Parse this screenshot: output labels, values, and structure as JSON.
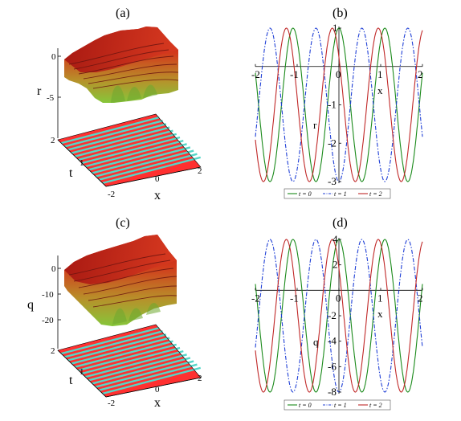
{
  "panels": [
    {
      "label": "(a)"
    },
    {
      "label": "(b)"
    },
    {
      "label": "(c)"
    },
    {
      "label": "(d)"
    }
  ],
  "colors": {
    "green": "#1a8a1a",
    "blue": "#1f3fd6",
    "red": "#c02828",
    "surface_top": "#c8281e",
    "surface_bottom": "#8cc43c",
    "stripe_red": "#ff3030",
    "stripe_cyan": "#54d6c8"
  },
  "chart_data": [
    {
      "type": "surface",
      "panel": "(a)",
      "zlabel": "r",
      "xlabel": "x",
      "ylabel": "t",
      "z_ticks": [
        "0",
        "-5"
      ],
      "x_ticks": [
        "0",
        "2"
      ],
      "t_ticks": [
        "2",
        "1",
        "-2"
      ]
    },
    {
      "type": "line",
      "panel": "(b)",
      "xlabel": "x",
      "ylabel": "r",
      "xlim": [
        -2,
        2
      ],
      "ylim": [
        -3,
        1
      ],
      "x_ticks": [
        "-2",
        "-1",
        "0",
        "1",
        "2"
      ],
      "y_ticks": [
        "1",
        "-1",
        "-2",
        "-3"
      ],
      "series": [
        {
          "name": "t = 0",
          "color": "#1a8a1a",
          "dash": "solid",
          "min": -3,
          "max": 1,
          "period": 1.1,
          "phase": 0.0
        },
        {
          "name": "t = 1",
          "color": "#1f3fd6",
          "dash": "dashdot",
          "min": -3,
          "max": 1,
          "period": 1.1,
          "phase": 0.55
        },
        {
          "name": "t = 2",
          "color": "#c02828",
          "dash": "solid",
          "min": -3,
          "max": 1,
          "period": 1.1,
          "phase": 0.0
        }
      ],
      "legend": "bottom"
    },
    {
      "type": "surface",
      "panel": "(c)",
      "zlabel": "q",
      "xlabel": "x",
      "ylabel": "t",
      "z_ticks": [
        "0",
        "-10",
        "-20"
      ],
      "x_ticks": [
        "0",
        "2"
      ],
      "t_ticks": [
        "2",
        "1",
        "-2"
      ]
    },
    {
      "type": "line",
      "panel": "(d)",
      "xlabel": "x",
      "ylabel": "q",
      "xlim": [
        -2,
        2
      ],
      "ylim": [
        -8,
        4
      ],
      "x_ticks": [
        "-2",
        "-1",
        "0",
        "1",
        "2"
      ],
      "y_ticks": [
        "4",
        "2",
        "0",
        "-2",
        "-4",
        "-6",
        "-8"
      ],
      "series": [
        {
          "name": "t = 0",
          "color": "#1a8a1a",
          "dash": "solid",
          "min": -8,
          "max": 4,
          "period": 1.1,
          "phase": 0.0
        },
        {
          "name": "t = 1",
          "color": "#1f3fd6",
          "dash": "dashdot",
          "min": -8,
          "max": 4,
          "period": 1.1,
          "phase": 0.55
        },
        {
          "name": "t = 2",
          "color": "#c02828",
          "dash": "solid",
          "min": -8,
          "max": 4,
          "period": 1.1,
          "phase": 0.0
        }
      ],
      "legend": "bottom"
    }
  ]
}
